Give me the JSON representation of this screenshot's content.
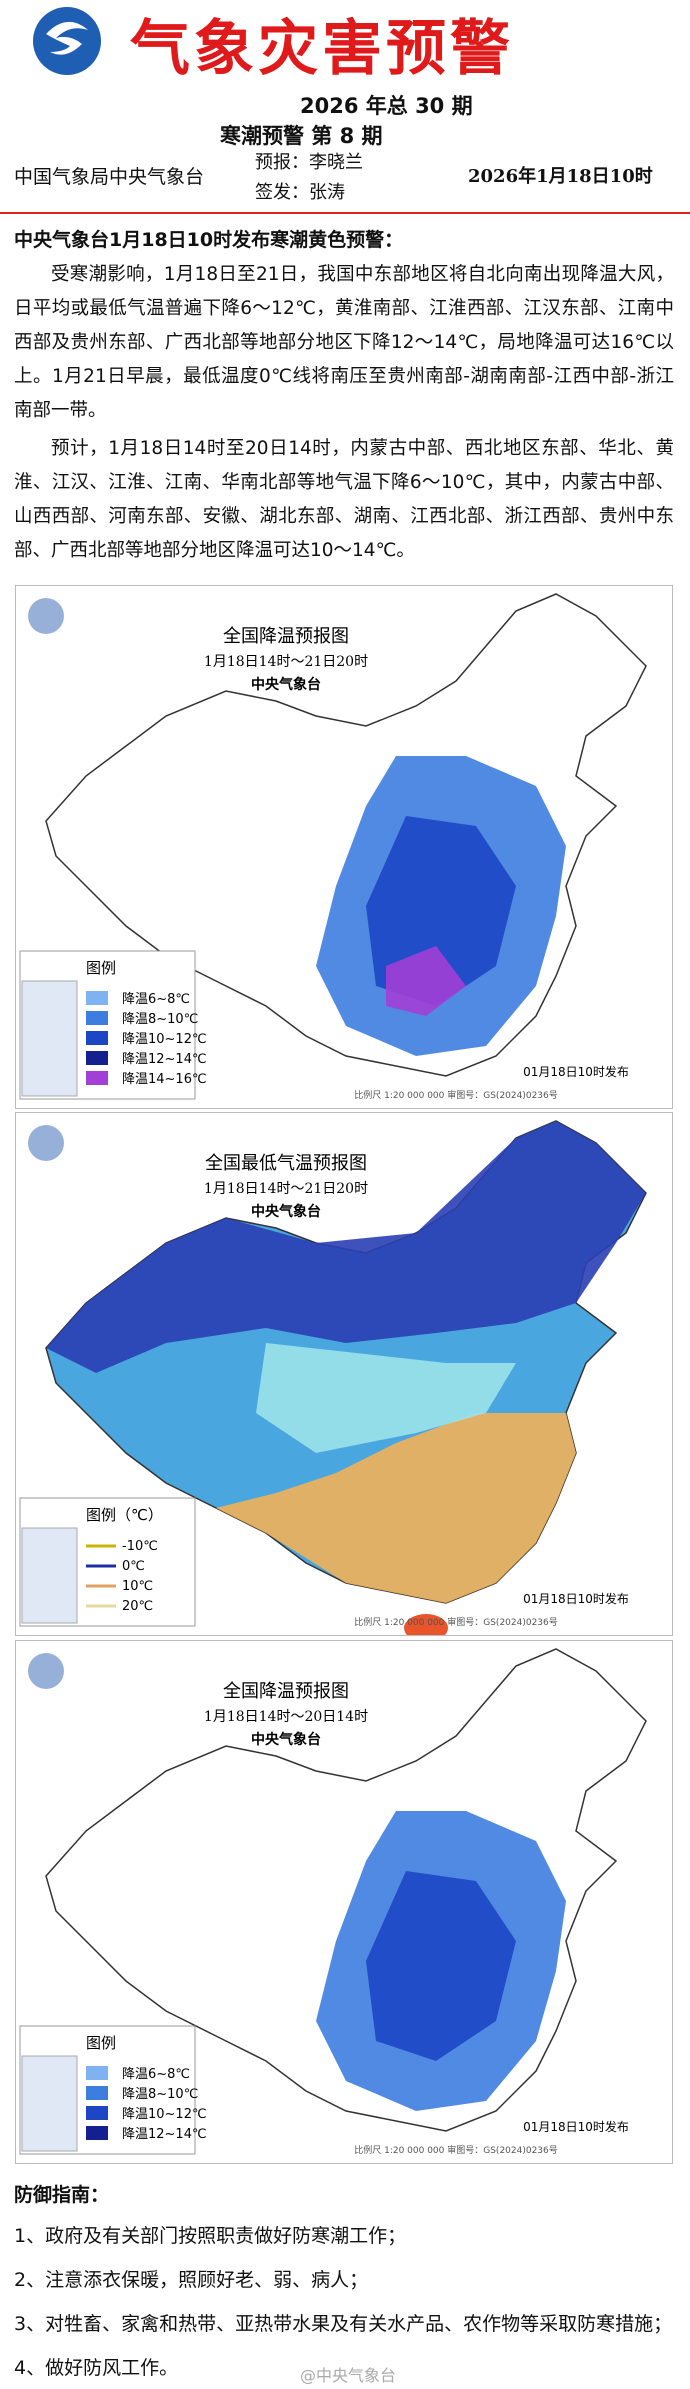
{
  "header": {
    "title": "气象灾害预警",
    "issue": "2026 年总 30 期",
    "sub_issue": "寒潮预警 第 8 期",
    "org": "中国气象局中央气象台",
    "forecaster": "预报：李晓兰",
    "signer": "签发：张涛",
    "date": "2026年1月18日10时"
  },
  "warning": {
    "heading": "中央气象台1月18日10时发布寒潮黄色预警：",
    "paragraphs": [
      "受寒潮影响，1月18日至21日，我国中东部地区将自北向南出现降温大风，日平均或最低气温普遍下降6～12℃，黄淮南部、江淮西部、江汉东部、江南中西部及贵州东部、广西北部等地部分地区下降12～14℃，局地降温可达16℃以上。1月21日早晨，最低温度0℃线将南压至贵州南部-湖南南部-江西中部-浙江南部一带。",
      "预计，1月18日14时至20日14时，内蒙古中部、西北地区东部、华北、黄淮、江汉、江淮、江南、华南北部等地气温下降6～10℃，其中，内蒙古中部、山西西部、河南东部、安徽、湖北东部、湖南、江西北部、浙江西部、贵州中东部、广西北部等地部分地区降温可达10～14℃。"
    ]
  },
  "maps": [
    {
      "title": "全国降温预报图",
      "period": "1月18日14时～21日20时",
      "agency": "中央气象台",
      "legend_title": "图例",
      "legend": [
        {
          "label": "降温6~8℃",
          "color": "#7fb2f0"
        },
        {
          "label": "降温8~10℃",
          "color": "#3d7de0"
        },
        {
          "label": "降温10~12℃",
          "color": "#1d46c4"
        },
        {
          "label": "降温12~14℃",
          "color": "#14208f"
        },
        {
          "label": "降温14~16℃",
          "color": "#a23fd6"
        }
      ],
      "issued": "01月18日10时发布",
      "scale": "比例尺 1:20 000 000   审图号：GS(2024)0236号"
    },
    {
      "title": "全国最低气温预报图",
      "period": "1月18日14时～21日20时",
      "agency": "中央气象台",
      "legend_title": "图例（℃）",
      "legend": [
        {
          "label": "-10℃",
          "color": "#c9b400"
        },
        {
          "label": "0℃",
          "color": "#1a2fa8"
        },
        {
          "label": "10℃",
          "color": "#e0a060"
        },
        {
          "label": "20℃",
          "color": "#e8d8a0"
        }
      ],
      "issued": "01月18日10时发布",
      "scale": "比例尺 1:20 000 000   审图号：GS(2024)0236号"
    },
    {
      "title": "全国降温预报图",
      "period": "1月18日14时～20日14时",
      "agency": "中央气象台",
      "legend_title": "图例",
      "legend": [
        {
          "label": "降温6~8℃",
          "color": "#7fb2f0"
        },
        {
          "label": "降温8~10℃",
          "color": "#3d7de0"
        },
        {
          "label": "降温10~12℃",
          "color": "#1d46c4"
        },
        {
          "label": "降温12~14℃",
          "color": "#14208f"
        }
      ],
      "issued": "01月18日10时发布",
      "scale": "比例尺 1:20 000 000   审图号：GS(2024)0236号"
    }
  ],
  "guide": {
    "title": "防御指南：",
    "items": [
      "1、政府及有关部门按照职责做好防寒潮工作；",
      "2、注意添衣保暖，照顾好老、弱、病人；",
      "3、对牲畜、家禽和热带、亚热带水果及有关水产品、农作物等采取防寒措施；",
      "4、做好防风工作。"
    ]
  },
  "watermark": "@中央气象台"
}
